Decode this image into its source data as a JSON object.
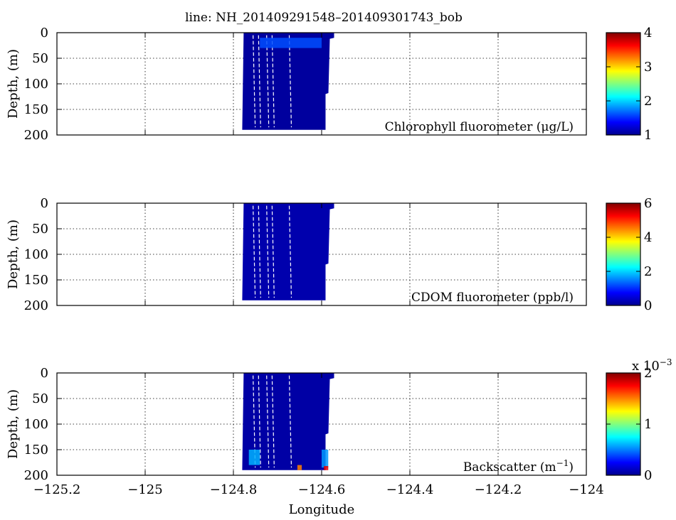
{
  "title": "line: NH_201409291548–201409301743_bob",
  "xlabel": "Longitude",
  "colormap": [
    "#00008f",
    "#0000ff",
    "#0080ff",
    "#00ffff",
    "#80ff80",
    "#ffff00",
    "#ff8000",
    "#ff0000",
    "#800000"
  ],
  "chart_data": [
    {
      "type": "heatmap",
      "name": "Chlorophyll fluorometer",
      "annotation": "Chlorophyll fluorometer (μg/L)",
      "xlabel": "",
      "ylabel": "Depth, (m)",
      "xlim": [
        -125.2,
        -124
      ],
      "ylim": [
        200,
        0
      ],
      "x_ticks": [
        -125.2,
        -125,
        -124.8,
        -124.6,
        -124.4,
        -124.2,
        -124
      ],
      "y_ticks": [
        0,
        50,
        100,
        150,
        200
      ],
      "clim": [
        1,
        4
      ],
      "cbar_ticks": [
        "1",
        "2",
        "3",
        "4"
      ],
      "cbar_multiplier": "",
      "profiles_x_range": [
        -124.78,
        -124.575
      ],
      "max_depth": 190,
      "background_value": 1.05,
      "features": [
        {
          "x": [
            -124.74,
            -124.6
          ],
          "depth": [
            10,
            30
          ],
          "value": 1.6
        }
      ]
    },
    {
      "type": "heatmap",
      "name": "CDOM fluorometer",
      "annotation": "CDOM fluorometer (ppb/l)",
      "xlabel": "",
      "ylabel": "Depth, (m)",
      "xlim": [
        -125.2,
        -124
      ],
      "ylim": [
        200,
        0
      ],
      "x_ticks": [
        -125.2,
        -125,
        -124.8,
        -124.6,
        -124.4,
        -124.2,
        -124
      ],
      "y_ticks": [
        0,
        50,
        100,
        150,
        200
      ],
      "clim": [
        0,
        6
      ],
      "cbar_ticks": [
        "0",
        "2",
        "4",
        "6"
      ],
      "cbar_multiplier": "",
      "profiles_x_range": [
        -124.78,
        -124.575
      ],
      "max_depth": 190,
      "background_value": 0.2,
      "features": []
    },
    {
      "type": "heatmap",
      "name": "Backscatter",
      "annotation": "Backscatter (m",
      "annotation_sup": "−1",
      "annotation_end": ")",
      "xlabel": "Longitude",
      "ylabel": "Depth, (m)",
      "xlim": [
        -125.2,
        -124
      ],
      "ylim": [
        200,
        0
      ],
      "x_ticks": [
        -125.2,
        -125,
        -124.8,
        -124.6,
        -124.4,
        -124.2,
        -124
      ],
      "x_tick_labels": [
        "−125.2",
        "−125",
        "−124.8",
        "−124.6",
        "−124.4",
        "−124.2",
        "−124"
      ],
      "y_ticks": [
        0,
        50,
        100,
        150,
        200
      ],
      "clim": [
        0,
        2
      ],
      "cbar_ticks": [
        "0",
        "1",
        "2"
      ],
      "cbar_multiplier": "x 10",
      "cbar_multiplier_sup": "−3",
      "profiles_x_range": [
        -124.78,
        -124.575
      ],
      "max_depth": 190,
      "background_value": 0.05,
      "features": [
        {
          "x": [
            -124.765,
            -124.74
          ],
          "depth": [
            150,
            180
          ],
          "value": 0.6
        },
        {
          "x": [
            -124.6,
            -124.585
          ],
          "depth": [
            150,
            185
          ],
          "value": 0.55
        },
        {
          "x": [
            -124.655,
            -124.645
          ],
          "depth": [
            180,
            190
          ],
          "value": 1.5
        },
        {
          "x": [
            -124.595,
            -124.585
          ],
          "depth": [
            182,
            190
          ],
          "value": 1.8
        }
      ]
    }
  ]
}
